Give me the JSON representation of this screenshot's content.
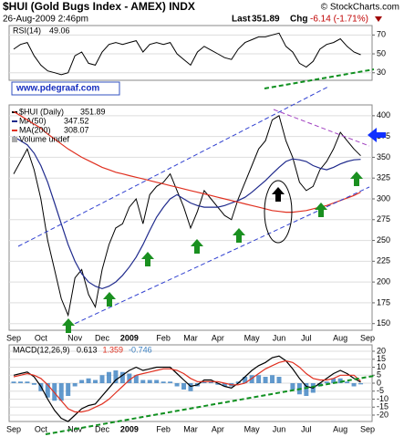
{
  "header": {
    "title": "$HUI (Gold Bugs Index - AMEX) INDX",
    "timestamp": "26-Aug-2009 2:46pm",
    "source": "© StockCharts.com",
    "last_label": "Last",
    "last": 351.89,
    "change_label": "Chg",
    "change": "-6.14 (-1.71%)",
    "website": "www.pdegraaf.com"
  },
  "chart_data": [
    {
      "type": "line",
      "indicator": "RSI(14)",
      "color": "#000000",
      "ylim": [
        22,
        80
      ],
      "yticks": [
        30,
        50,
        70
      ],
      "values": [
        55,
        60,
        62,
        48,
        38,
        32,
        30,
        28,
        30,
        48,
        52,
        40,
        38,
        52,
        60,
        62,
        60,
        62,
        64,
        52,
        60,
        62,
        60,
        62,
        50,
        44,
        38,
        52,
        58,
        54,
        50,
        46,
        44,
        55,
        62,
        65,
        68,
        68,
        70,
        72,
        58,
        52,
        40,
        36,
        42,
        55,
        60,
        62,
        66,
        58,
        52,
        49.06,
        null
      ]
    },
    {
      "type": "line",
      "ylim": [
        142,
        413
      ],
      "yticks": [
        150,
        175,
        200,
        225,
        250,
        275,
        300,
        325,
        350,
        375,
        400
      ],
      "legend_extra": "Volume undef",
      "categories": [
        "Sep",
        null,
        null,
        null,
        "Oct",
        null,
        null,
        null,
        null,
        "Nov",
        null,
        null,
        null,
        "Dec",
        null,
        null,
        null,
        "2009",
        null,
        null,
        null,
        null,
        "Feb",
        null,
        null,
        null,
        "Mar",
        null,
        null,
        null,
        "Apr",
        null,
        null,
        null,
        null,
        "May",
        null,
        null,
        null,
        "Jun",
        null,
        null,
        null,
        "Jul",
        null,
        null,
        null,
        null,
        "Aug",
        null,
        null,
        null,
        "Sep"
      ],
      "series": [
        {
          "name": "$HUI (Daily)",
          "color": "#000000",
          "values": [
            330,
            345,
            360,
            335,
            300,
            250,
            215,
            180,
            160,
            205,
            215,
            185,
            170,
            215,
            245,
            265,
            270,
            290,
            300,
            270,
            305,
            315,
            320,
            330,
            310,
            290,
            265,
            285,
            310,
            300,
            290,
            280,
            275,
            300,
            320,
            340,
            360,
            370,
            395,
            400,
            370,
            350,
            320,
            310,
            315,
            335,
            345,
            360,
            380,
            370,
            360,
            351.89,
            null
          ]
        },
        {
          "name": "MA(50)",
          "color": "#1f2a8c",
          "values": [
            375,
            370,
            365,
            355,
            340,
            320,
            295,
            270,
            245,
            225,
            210,
            200,
            195,
            192,
            195,
            200,
            208,
            218,
            230,
            245,
            262,
            278,
            290,
            300,
            305,
            300,
            295,
            292,
            290,
            290,
            290,
            292,
            295,
            298,
            302,
            308,
            315,
            322,
            330,
            338,
            345,
            348,
            347,
            345,
            340,
            337,
            335,
            338,
            342,
            345,
            347,
            347.52,
            null
          ]
        },
        {
          "name": "MA(200)",
          "color": "#e03020",
          "values": [
            405,
            400,
            395,
            390,
            385,
            378,
            372,
            366,
            360,
            355,
            350,
            346,
            342,
            338,
            335,
            332,
            330,
            328,
            326,
            324,
            322,
            320,
            318,
            316,
            314,
            312,
            310,
            308,
            306,
            304,
            302,
            300,
            298,
            296,
            294,
            292,
            290,
            288,
            286,
            285,
            284,
            284,
            285,
            286,
            288,
            290,
            292,
            295,
            298,
            301,
            304,
            308.07,
            null
          ]
        }
      ]
    },
    {
      "type": "macd",
      "indicator": "MACD(12,26,9)",
      "ylim": [
        -24,
        24
      ],
      "yticks": [
        -20,
        -15,
        -10,
        -5,
        0,
        5,
        10,
        15,
        20
      ],
      "categories": [
        "Sep",
        null,
        null,
        null,
        "Oct",
        null,
        null,
        null,
        null,
        "Nov",
        null,
        null,
        null,
        "Dec",
        null,
        null,
        null,
        "2009",
        null,
        null,
        null,
        null,
        "Feb",
        null,
        null,
        null,
        "Mar",
        null,
        null,
        null,
        "Apr",
        null,
        null,
        null,
        null,
        "May",
        null,
        null,
        null,
        "Jun",
        null,
        null,
        null,
        "Jul",
        null,
        null,
        null,
        null,
        "Aug",
        null,
        null,
        null,
        "Sep"
      ],
      "series": [
        {
          "style": "line",
          "color": "#000000",
          "values": [
            5,
            6,
            7,
            4,
            -2,
            -10,
            -17,
            -22,
            -24,
            -20,
            -16,
            -14,
            -13,
            -8,
            -3,
            2,
            5,
            8,
            10,
            8,
            9,
            10,
            10,
            10,
            6,
            2,
            -2,
            -1,
            2,
            2,
            0,
            -2,
            -3,
            0,
            4,
            8,
            11,
            13,
            16,
            17,
            14,
            9,
            3,
            -2,
            -3,
            0,
            3,
            6,
            8,
            6,
            3,
            0.613,
            null
          ]
        },
        {
          "style": "line",
          "color": "#e03020",
          "values": [
            4,
            5,
            6,
            5,
            3,
            -1,
            -6,
            -11,
            -16,
            -18,
            -18,
            -17,
            -15,
            -13,
            -10,
            -6,
            -2,
            2,
            5,
            6,
            7,
            8,
            9,
            9,
            8,
            6,
            3,
            1,
            1,
            1,
            1,
            0,
            -1,
            -1,
            0,
            3,
            6,
            9,
            11,
            13,
            14,
            13,
            10,
            6,
            3,
            2,
            2,
            3,
            5,
            5,
            5,
            1.359,
            null
          ]
        },
        {
          "style": "histogram",
          "color": "#3a7fc0",
          "values": [
            1,
            1,
            1,
            -1,
            -5,
            -9,
            -11,
            -11,
            -8,
            -2,
            2,
            3,
            2,
            5,
            7,
            8,
            7,
            6,
            5,
            2,
            2,
            2,
            1,
            1,
            -2,
            -4,
            -5,
            -2,
            1,
            1,
            -1,
            -2,
            -2,
            1,
            4,
            5,
            5,
            4,
            5,
            4,
            0,
            -4,
            -7,
            -8,
            -6,
            -2,
            1,
            3,
            3,
            1,
            -2,
            -0.746,
            null
          ]
        }
      ]
    }
  ]
}
